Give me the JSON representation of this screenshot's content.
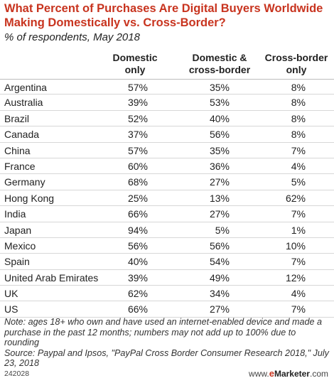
{
  "header": {
    "title": "What Percent of Purchases Are Digital Buyers Worldwide Making Domestically vs. Cross-Border?",
    "subtitle": "% of respondents, May 2018"
  },
  "columns": [
    "Domestic only",
    "Domestic & cross-border",
    "Cross-border only"
  ],
  "chart_data": {
    "type": "table",
    "title": "What Percent of Purchases Are Digital Buyers Worldwide Making Domestically vs. Cross-Border?",
    "subtitle": "% of respondents, May 2018",
    "columns": [
      "Domestic only",
      "Domestic & cross-border",
      "Cross-border only"
    ],
    "categories": [
      "Argentina",
      "Australia",
      "Brazil",
      "Canada",
      "China",
      "France",
      "Germany",
      "Hong Kong",
      "India",
      "Japan",
      "Mexico",
      "Spain",
      "United Arab Emirates",
      "UK",
      "US"
    ],
    "series": [
      {
        "name": "Domestic only",
        "values": [
          57,
          39,
          52,
          37,
          57,
          60,
          68,
          25,
          66,
          94,
          56,
          40,
          39,
          62,
          66
        ]
      },
      {
        "name": "Domestic & cross-border",
        "values": [
          35,
          53,
          40,
          56,
          35,
          36,
          27,
          13,
          27,
          5,
          56,
          54,
          49,
          34,
          27
        ]
      },
      {
        "name": "Cross-border only",
        "values": [
          8,
          8,
          8,
          8,
          7,
          4,
          5,
          62,
          7,
          1,
          10,
          7,
          12,
          4,
          7
        ]
      }
    ],
    "unit": "%"
  },
  "notes": {
    "note": "Note: ages 18+ who own and have used an internet-enabled device and made a purchase in the past 12 months; numbers may not add up to 100% due to rounding",
    "source": "Source: Paypal and Ipsos, \"PayPal Cross Border Consumer Research 2018,\" July 23, 2018"
  },
  "footer": {
    "chart_id": "242028",
    "brand_prefix": "www.",
    "brand_e": "e",
    "brand_marketer": "Marketer",
    "brand_suffix": ".com"
  }
}
